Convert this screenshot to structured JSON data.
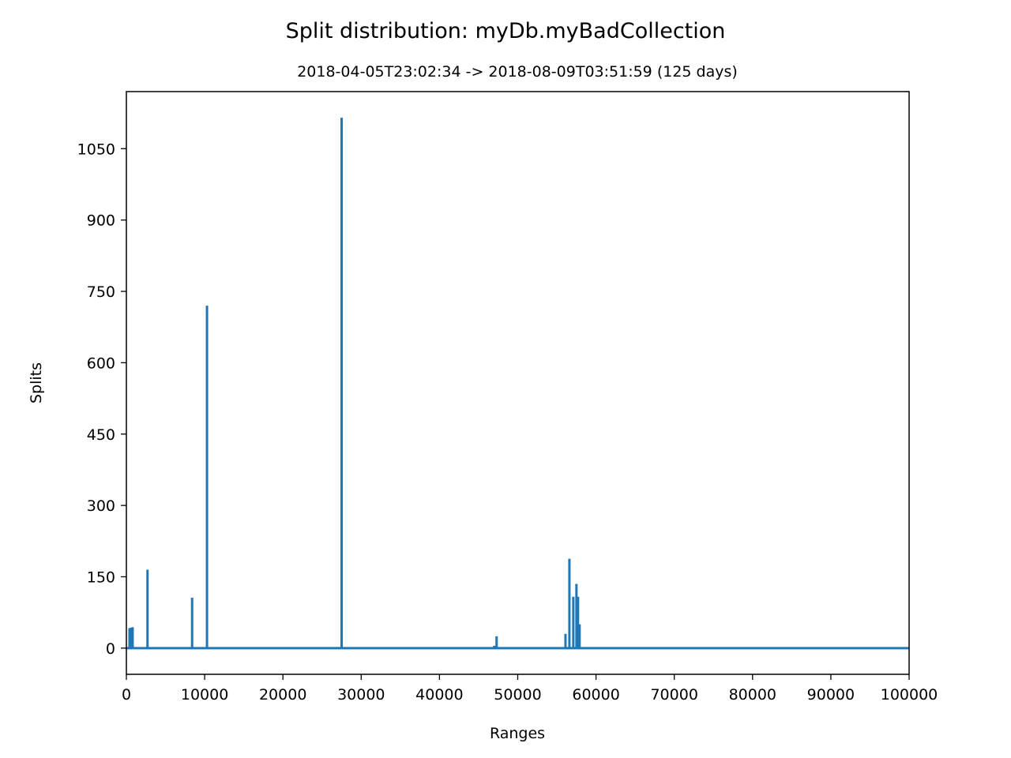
{
  "chart_data": {
    "type": "line",
    "title": "Split distribution: myDb.myBadCollection",
    "subtitle": "2018-04-05T23:02:34 -> 2018-08-09T03:51:59 (125 days)",
    "xlabel": "Ranges",
    "ylabel": "Splits",
    "xlim": [
      0,
      100000
    ],
    "ylim": [
      -55,
      1170
    ],
    "xticks": [
      0,
      10000,
      20000,
      30000,
      40000,
      50000,
      60000,
      70000,
      80000,
      90000,
      100000
    ],
    "xtick_labels": [
      "0",
      "10000",
      "20000",
      "30000",
      "40000",
      "50000",
      "60000",
      "70000",
      "80000",
      "90000",
      "100000"
    ],
    "yticks": [
      0,
      150,
      300,
      450,
      600,
      750,
      900,
      1050
    ],
    "ytick_labels": [
      "0",
      "150",
      "300",
      "450",
      "600",
      "750",
      "900",
      "1050"
    ],
    "grid": false,
    "line_color": "#1f77b4",
    "baseline": 0,
    "spikes": [
      {
        "x": 400,
        "value": 42
      },
      {
        "x": 600,
        "value": 43
      },
      {
        "x": 800,
        "value": 44
      },
      {
        "x": 2700,
        "value": 165
      },
      {
        "x": 8400,
        "value": 106
      },
      {
        "x": 10300,
        "value": 720
      },
      {
        "x": 27500,
        "value": 1115
      },
      {
        "x": 47000,
        "value": 5
      },
      {
        "x": 47300,
        "value": 25
      },
      {
        "x": 56100,
        "value": 30
      },
      {
        "x": 56600,
        "value": 188
      },
      {
        "x": 57100,
        "value": 108
      },
      {
        "x": 57500,
        "value": 135
      },
      {
        "x": 57700,
        "value": 108
      },
      {
        "x": 57900,
        "value": 50
      }
    ]
  }
}
